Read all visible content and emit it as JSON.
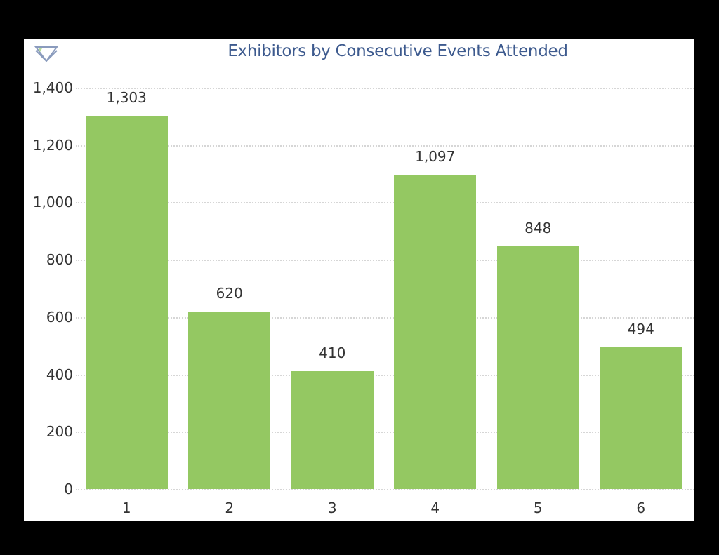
{
  "title": "Exhibitors by Consecutive Events Attended",
  "icons": {
    "filter": "filter-funnel-icon"
  },
  "colors": {
    "bar": "#94c862",
    "title": "#3d5a8e",
    "grid": "#d6d6d6",
    "background": "#ffffff",
    "frame": "#000000"
  },
  "y_axis": {
    "ticks": [
      "0",
      "200",
      "400",
      "600",
      "800",
      "1,000",
      "1,200",
      "1,400"
    ]
  },
  "x_axis": {
    "ticks": [
      "1",
      "2",
      "3",
      "4",
      "5",
      "6"
    ]
  },
  "bars": [
    {
      "category": "1",
      "value": 1303,
      "label": "1,303"
    },
    {
      "category": "2",
      "value": 620,
      "label": "620"
    },
    {
      "category": "3",
      "value": 410,
      "label": "410"
    },
    {
      "category": "4",
      "value": 1097,
      "label": "1,097"
    },
    {
      "category": "5",
      "value": 848,
      "label": "848"
    },
    {
      "category": "6",
      "value": 494,
      "label": "494"
    }
  ],
  "chart_data": {
    "type": "bar",
    "title": "Exhibitors by Consecutive Events Attended",
    "categories": [
      "1",
      "2",
      "3",
      "4",
      "5",
      "6"
    ],
    "values": [
      1303,
      620,
      410,
      1097,
      848,
      494
    ],
    "data_labels": [
      "1,303",
      "620",
      "410",
      "1,097",
      "848",
      "494"
    ],
    "xlabel": "",
    "ylabel": "",
    "ylim": [
      0,
      1400
    ],
    "yticks": [
      0,
      200,
      400,
      600,
      800,
      1000,
      1200,
      1400
    ],
    "grid": true,
    "grid_style": "dotted horizontal",
    "legend": null
  }
}
